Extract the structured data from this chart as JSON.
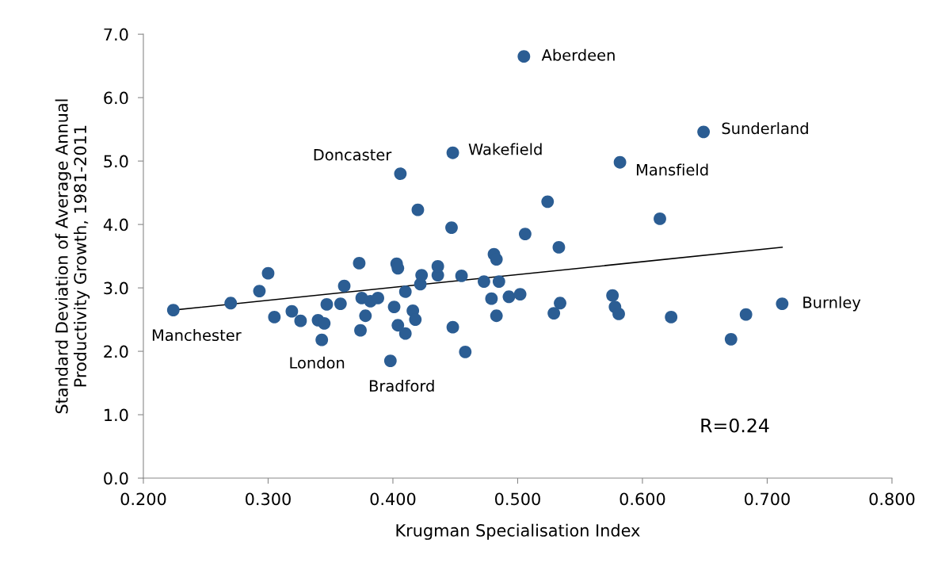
{
  "chart_data": {
    "type": "scatter",
    "xlabel": "Krugman Specialisation Index",
    "ylabel": "Standard Deviation of Average Annual\nProductivity Growth, 1981-2011",
    "xlim": [
      0.2,
      0.8
    ],
    "xticks": [
      {
        "value": 0.2,
        "label": "0.200"
      },
      {
        "value": 0.3,
        "label": "0.300"
      },
      {
        "value": 0.4,
        "label": "0.400"
      },
      {
        "value": 0.5,
        "label": "0.500"
      },
      {
        "value": 0.6,
        "label": "0.600"
      },
      {
        "value": 0.7,
        "label": "0.700"
      },
      {
        "value": 0.8,
        "label": "0.800"
      }
    ],
    "ylim": [
      0,
      7
    ],
    "yticks": [
      {
        "value": 0,
        "label": "0.0"
      },
      {
        "value": 1,
        "label": "1.0"
      },
      {
        "value": 2,
        "label": "2.0"
      },
      {
        "value": 3,
        "label": "3.0"
      },
      {
        "value": 4,
        "label": "4.0"
      },
      {
        "value": 5,
        "label": "5.0"
      },
      {
        "value": 6,
        "label": "6.0"
      },
      {
        "value": 7,
        "label": "7.0"
      }
    ],
    "grid": false,
    "legend": false,
    "marker": "circle",
    "series": [
      {
        "color": "#2b5d93",
        "x": [
          0.224,
          0.27,
          0.293,
          0.3,
          0.305,
          0.319,
          0.326,
          0.34,
          0.345,
          0.343,
          0.347,
          0.358,
          0.361,
          0.373,
          0.375,
          0.382,
          0.388,
          0.378,
          0.374,
          0.398,
          0.403,
          0.404,
          0.401,
          0.404,
          0.41,
          0.416,
          0.418,
          0.41,
          0.42,
          0.406,
          0.422,
          0.423,
          0.436,
          0.436,
          0.447,
          0.455,
          0.448,
          0.458,
          0.448,
          0.481,
          0.483,
          0.473,
          0.485,
          0.479,
          0.493,
          0.502,
          0.483,
          0.506,
          0.524,
          0.533,
          0.534,
          0.529,
          0.576,
          0.578,
          0.581,
          0.614,
          0.623,
          0.683,
          0.671,
          0.712,
          0.505,
          0.649,
          0.582
        ],
        "values": [
          2.65,
          2.76,
          2.95,
          3.23,
          2.54,
          2.63,
          2.48,
          2.49,
          2.44,
          2.18,
          2.74,
          2.75,
          3.03,
          3.39,
          2.84,
          2.79,
          2.84,
          2.56,
          2.33,
          1.85,
          3.38,
          3.31,
          2.7,
          2.41,
          2.94,
          2.64,
          2.5,
          2.28,
          4.23,
          4.8,
          3.06,
          3.2,
          3.2,
          3.34,
          3.95,
          3.19,
          2.38,
          1.99,
          5.13,
          3.53,
          3.45,
          3.1,
          3.1,
          2.83,
          2.86,
          2.9,
          2.56,
          3.85,
          4.36,
          3.64,
          2.76,
          2.6,
          2.88,
          2.7,
          2.59,
          4.09,
          2.54,
          2.58,
          2.19,
          2.75,
          6.65,
          5.46,
          4.98
        ]
      },
      {
        "type": "line",
        "color": "#000000",
        "marker": "none",
        "x": [
          0.224,
          0.712
        ],
        "values": [
          2.65,
          3.64
        ]
      }
    ],
    "annotations": [
      {
        "text": "Aberdeen",
        "x": 0.505,
        "y": 6.65
      },
      {
        "text": "Sunderland",
        "x": 0.649,
        "y": 5.46
      },
      {
        "text": "Wakefield",
        "x": 0.448,
        "y": 5.13
      },
      {
        "text": "Mansfield",
        "x": 0.582,
        "y": 4.98
      },
      {
        "text": "Doncaster",
        "x": 0.406,
        "y": 4.8
      },
      {
        "text": "Burnley",
        "x": 0.712,
        "y": 2.75
      },
      {
        "text": "Manchester",
        "x": 0.224,
        "y": 2.65
      },
      {
        "text": "London",
        "x": 0.343,
        "y": 2.18
      },
      {
        "text": "Bradford",
        "x": 0.398,
        "y": 1.85
      },
      "R=0.24"
    ]
  }
}
